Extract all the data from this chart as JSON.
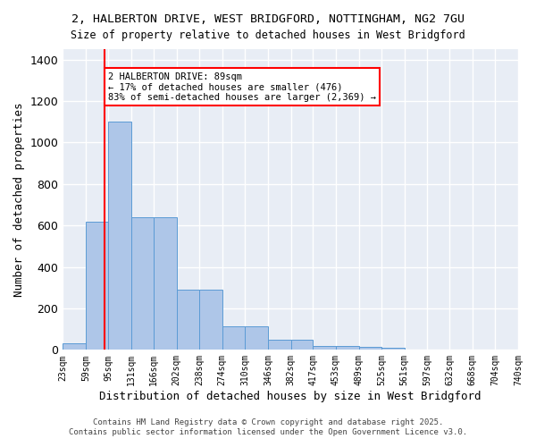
{
  "title_line1": "2, HALBERTON DRIVE, WEST BRIDGFORD, NOTTINGHAM, NG2 7GU",
  "title_line2": "Size of property relative to detached houses in West Bridgford",
  "xlabel": "Distribution of detached houses by size in West Bridgford",
  "ylabel": "Number of detached properties",
  "bar_values": [
    30,
    620,
    1100,
    640,
    640,
    290,
    290,
    115,
    115,
    50,
    50,
    20,
    20,
    15,
    10,
    0,
    0,
    0,
    0,
    0
  ],
  "bin_edges": [
    23,
    59,
    95,
    131,
    166,
    202,
    238,
    274,
    310,
    346,
    382,
    417,
    453,
    489,
    525,
    561,
    597,
    632,
    668,
    704,
    740
  ],
  "tick_labels": [
    "23sqm",
    "59sqm",
    "95sqm",
    "131sqm",
    "166sqm",
    "202sqm",
    "238sqm",
    "274sqm",
    "310sqm",
    "346sqm",
    "382sqm",
    "417sqm",
    "453sqm",
    "489sqm",
    "525sqm",
    "561sqm",
    "597sqm",
    "632sqm",
    "668sqm",
    "704sqm",
    "740sqm"
  ],
  "bar_color": "#aec6e8",
  "bar_edge_color": "#5b9bd5",
  "background_color": "#e8edf5",
  "grid_color": "#ffffff",
  "red_line_x": 89,
  "ylim": [
    0,
    1450
  ],
  "annotation_text": "2 HALBERTON DRIVE: 89sqm\n← 17% of detached houses are smaller (476)\n83% of semi-detached houses are larger (2,369) →",
  "footer_line1": "Contains HM Land Registry data © Crown copyright and database right 2025.",
  "footer_line2": "Contains public sector information licensed under the Open Government Licence v3.0."
}
